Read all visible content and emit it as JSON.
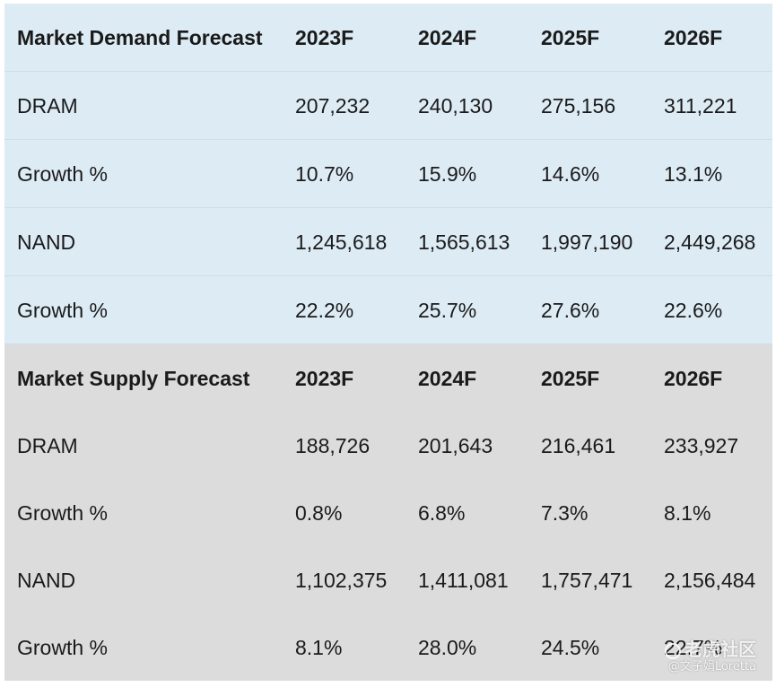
{
  "demand": {
    "header": [
      "Market Demand Forecast",
      "2023F",
      "2024F",
      "2025F",
      "2026F"
    ],
    "rows": [
      [
        "DRAM",
        "207,232",
        "240,130",
        "275,156",
        "311,221"
      ],
      [
        "Growth %",
        "10.7%",
        "15.9%",
        "14.6%",
        "13.1%"
      ],
      [
        "NAND",
        "1,245,618",
        "1,565,613",
        "1,997,190",
        "2,449,268"
      ],
      [
        "Growth %",
        "22.2%",
        "25.7%",
        "27.6%",
        "22.6%"
      ]
    ]
  },
  "supply": {
    "header": [
      "Market Supply Forecast",
      "2023F",
      "2024F",
      "2025F",
      "2026F"
    ],
    "rows": [
      [
        "DRAM",
        "188,726",
        "201,643",
        "216,461",
        "233,927"
      ],
      [
        "Growth %",
        "0.8%",
        "6.8%",
        "7.3%",
        "8.1%"
      ],
      [
        "NAND",
        "1,102,375",
        "1,411,081",
        "1,757,471",
        "2,156,484"
      ],
      [
        "Growth %",
        "8.1%",
        "28.0%",
        "24.5%",
        "22.7%"
      ]
    ]
  },
  "watermark": {
    "brand": "老虎社区",
    "handle": "@文子娟Loretta",
    "icon": "tiger-logo-icon"
  },
  "colors": {
    "demand_bg": "#ddebf5",
    "supply_bg": "#dcdcdc"
  }
}
